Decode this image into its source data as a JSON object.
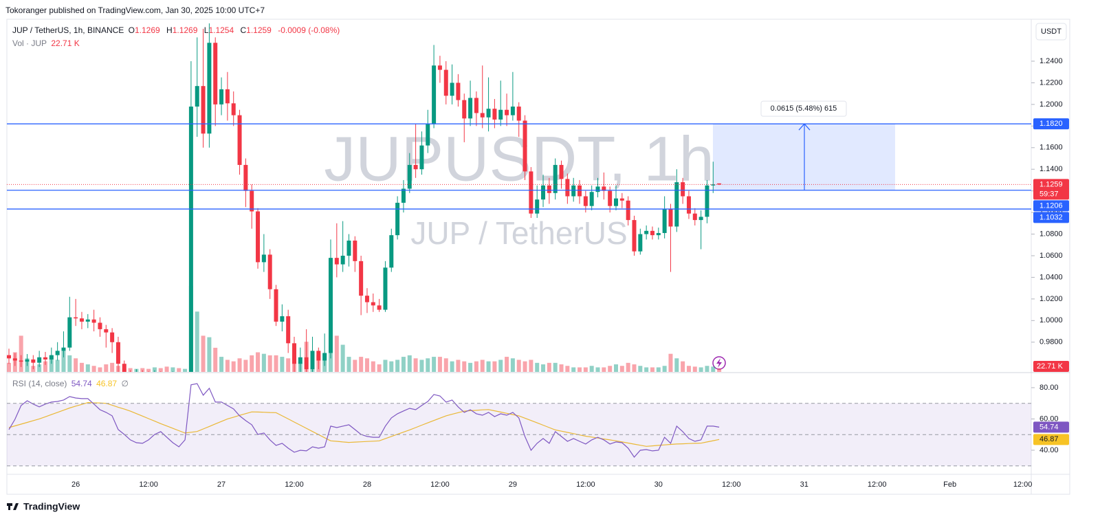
{
  "attribution": "Tokoranger published on TradingView.com, Jan 30, 2025 10:00 UTC+7",
  "footer": "TradingView",
  "chart_data": {
    "type": "candlestick",
    "symbol": "JUP / TetherUS, 1h, BINANCE",
    "ohlc_letters": [
      "O",
      "H",
      "L",
      "C"
    ],
    "change": "-0.0009 (-0.08%)",
    "currency": "USDT",
    "watermark": [
      "JUPUSDT, 1h",
      "JUP / TetherUS"
    ],
    "up_color": "#089981",
    "down_color": "#f23645",
    "level_color": "#2962ff",
    "ylim": [
      0.9525,
      1.2788
    ],
    "yticks": [
      {
        "value": 0.98,
        "label": "0.9800"
      },
      {
        "value": 1.0,
        "label": "1.0000"
      },
      {
        "value": 1.02,
        "label": "1.0200"
      },
      {
        "value": 1.04,
        "label": "1.0400"
      },
      {
        "value": 1.06,
        "label": "1.0600"
      },
      {
        "value": 1.08,
        "label": "1.0800"
      },
      {
        "value": 1.1,
        "label": "1.1000"
      },
      {
        "value": 1.12,
        "label": "1.1200"
      },
      {
        "value": 1.14,
        "label": "1.1400"
      },
      {
        "value": 1.16,
        "label": "1.1600"
      },
      {
        "value": 1.18,
        "label": "1.1800"
      },
      {
        "value": 1.2,
        "label": "1.2000"
      },
      {
        "value": 1.22,
        "label": "1.2200"
      },
      {
        "value": 1.24,
        "label": "1.2400"
      }
    ],
    "xticks": [
      "26",
      "12:00",
      "27",
      "12:00",
      "28",
      "12:00",
      "29",
      "12:00",
      "30",
      "12:00",
      "31",
      "12:00",
      "Feb",
      "12:00"
    ],
    "levels": [
      {
        "value": 1.182,
        "label": "1.1820"
      },
      {
        "value": 1.1206,
        "label": "1.1206"
      },
      {
        "value": 1.1032,
        "label": "1.1032"
      }
    ],
    "countdown": "59:37",
    "measure_label": "0.0615 (5.48%) 615",
    "candles": {
      "open": [
        0.968,
        0.965,
        0.963,
        0.962,
        0.964,
        0.961,
        0.966,
        0.964,
        0.968,
        0.972,
        0.975,
        1.003,
        1.002,
        0.999,
        1.001,
        0.998,
        0.992,
        0.989,
        0.98,
        0.96,
        0.95,
        0.948,
        0.951,
        0.949,
        0.947,
        0.95,
        0.948,
        0.946,
        0.949,
        0.947,
        0.948,
        1.198,
        1.217,
        1.173,
        1.257,
        1.2,
        1.214,
        1.201,
        1.19,
        1.144,
        1.12,
        1.101,
        1.054,
        1.061,
        1.029,
        0.999,
        1.004,
        0.979,
        0.96,
        0.966,
        0.955,
        0.972,
        0.963,
        0.97,
        1.058,
        1.052,
        1.06,
        1.074,
        1.055,
        1.023,
        1.017,
        1.014,
        1.01,
        1.049,
        1.079,
        1.109,
        1.122,
        1.144,
        1.14,
        1.162,
        1.182,
        1.236,
        1.232,
        1.208,
        1.22,
        1.204,
        1.187,
        1.206,
        1.192,
        1.188,
        1.196,
        1.186,
        1.195,
        1.19,
        1.198,
        1.185,
        1.138,
        1.099,
        1.112,
        1.125,
        1.118,
        1.144,
        1.131,
        1.115,
        1.125,
        1.115,
        1.106,
        1.119,
        1.124,
        1.12,
        1.106,
        1.113,
        1.111,
        1.093,
        1.064,
        1.08,
        1.083,
        1.079,
        1.081,
        1.103,
        1.087,
        1.128,
        1.115,
        1.099,
        1.093,
        1.096,
        1.125,
        1.1269
      ],
      "high": [
        0.974,
        0.97,
        0.968,
        0.969,
        0.968,
        0.972,
        0.971,
        0.975,
        0.98,
        0.99,
        1.022,
        1.02,
        1.008,
        1.006,
        1.01,
        1.003,
        0.996,
        0.993,
        0.985,
        0.963,
        0.954,
        0.955,
        0.954,
        0.953,
        0.954,
        0.953,
        0.951,
        0.953,
        0.952,
        0.952,
        1.24,
        1.262,
        1.27,
        1.275,
        1.262,
        1.225,
        1.23,
        1.212,
        1.195,
        1.15,
        1.126,
        1.104,
        1.08,
        1.066,
        1.033,
        1.015,
        1.01,
        0.985,
        0.975,
        0.992,
        0.985,
        0.975,
        0.988,
        1.075,
        1.09,
        1.092,
        1.08,
        1.078,
        1.06,
        1.03,
        1.025,
        1.02,
        1.055,
        1.085,
        1.115,
        1.13,
        1.155,
        1.182,
        1.175,
        1.195,
        1.255,
        1.245,
        1.24,
        1.237,
        1.228,
        1.21,
        1.222,
        1.212,
        1.236,
        1.225,
        1.205,
        1.222,
        1.21,
        1.23,
        1.202,
        1.19,
        1.142,
        1.125,
        1.135,
        1.132,
        1.15,
        1.148,
        1.136,
        1.132,
        1.13,
        1.12,
        1.125,
        1.132,
        1.137,
        1.124,
        1.125,
        1.118,
        1.115,
        1.097,
        1.085,
        1.088,
        1.087,
        1.086,
        1.115,
        1.108,
        1.14,
        1.132,
        1.12,
        1.104,
        1.102,
        1.13,
        1.147,
        1.1269
      ],
      "low": [
        0.96,
        0.958,
        0.957,
        0.958,
        0.955,
        0.957,
        0.959,
        0.96,
        0.963,
        0.966,
        0.972,
        0.995,
        0.992,
        0.993,
        0.99,
        0.985,
        0.975,
        0.97,
        0.952,
        0.944,
        0.943,
        0.944,
        0.944,
        0.942,
        0.943,
        0.943,
        0.941,
        0.942,
        0.942,
        0.943,
        0.945,
        1.17,
        1.16,
        1.16,
        1.18,
        1.19,
        1.185,
        1.18,
        1.135,
        1.105,
        1.085,
        1.048,
        1.045,
        1.02,
        0.995,
        0.99,
        0.97,
        0.95,
        0.952,
        0.948,
        0.95,
        0.955,
        0.958,
        0.965,
        1.04,
        1.045,
        1.05,
        1.045,
        1.005,
        1.007,
        1.008,
        1.008,
        1.008,
        1.045,
        1.075,
        1.1,
        1.118,
        1.132,
        1.135,
        1.155,
        1.178,
        1.22,
        1.2,
        1.2,
        1.198,
        1.165,
        1.18,
        1.18,
        1.178,
        1.175,
        1.178,
        1.18,
        1.18,
        1.185,
        1.17,
        1.13,
        1.095,
        1.095,
        1.105,
        1.108,
        1.112,
        1.122,
        1.108,
        1.11,
        1.108,
        1.1,
        1.102,
        1.114,
        1.112,
        1.1,
        1.102,
        1.104,
        1.088,
        1.06,
        1.061,
        1.075,
        1.075,
        1.075,
        1.076,
        1.045,
        1.082,
        1.108,
        1.094,
        1.088,
        1.066,
        1.09,
        1.118,
        1.1254
      ],
      "close": [
        0.965,
        0.963,
        0.962,
        0.964,
        0.961,
        0.966,
        0.964,
        0.968,
        0.972,
        0.975,
        1.003,
        1.002,
        0.999,
        1.001,
        0.998,
        0.992,
        0.989,
        0.98,
        0.96,
        0.95,
        0.948,
        0.951,
        0.949,
        0.947,
        0.95,
        0.948,
        0.946,
        0.949,
        0.947,
        0.948,
        1.198,
        1.217,
        1.173,
        1.257,
        1.2,
        1.214,
        1.201,
        1.19,
        1.144,
        1.12,
        1.101,
        1.054,
        1.061,
        1.029,
        0.999,
        1.004,
        0.979,
        0.96,
        0.966,
        0.955,
        0.972,
        0.963,
        0.97,
        1.058,
        1.052,
        1.06,
        1.074,
        1.055,
        1.023,
        1.017,
        1.014,
        1.01,
        1.049,
        1.079,
        1.109,
        1.122,
        1.144,
        1.14,
        1.162,
        1.182,
        1.236,
        1.232,
        1.208,
        1.22,
        1.204,
        1.187,
        1.206,
        1.192,
        1.188,
        1.196,
        1.186,
        1.195,
        1.19,
        1.198,
        1.185,
        1.138,
        1.099,
        1.112,
        1.125,
        1.118,
        1.144,
        1.131,
        1.115,
        1.125,
        1.115,
        1.106,
        1.119,
        1.124,
        1.12,
        1.106,
        1.113,
        1.111,
        1.093,
        1.064,
        1.08,
        1.083,
        1.079,
        1.081,
        1.103,
        1.087,
        1.128,
        1.115,
        1.099,
        1.093,
        1.096,
        1.125,
        1.126,
        1.1259
      ]
    },
    "volume": {
      "name": "Vol · JUP",
      "last_label": "22.71 K",
      "values": [
        60,
        130,
        240,
        90,
        40,
        50,
        70,
        110,
        80,
        140,
        110,
        90,
        60,
        50,
        40,
        30,
        50,
        60,
        40,
        20,
        25,
        20,
        25,
        20,
        30,
        25,
        35,
        30,
        25,
        20,
        570,
        400,
        240,
        230,
        160,
        100,
        80,
        70,
        90,
        80,
        110,
        130,
        120,
        110,
        110,
        100,
        90,
        70,
        60,
        200,
        110,
        110,
        120,
        180,
        240,
        180,
        100,
        80,
        100,
        90,
        70,
        50,
        80,
        70,
        80,
        100,
        110,
        90,
        80,
        90,
        100,
        100,
        90,
        70,
        80,
        70,
        60,
        70,
        80,
        70,
        70,
        80,
        100,
        90,
        80,
        70,
        80,
        60,
        50,
        60,
        60,
        50,
        40,
        30,
        30,
        30,
        40,
        30,
        30,
        40,
        50,
        40,
        60,
        50,
        40,
        30,
        30,
        30,
        40,
        120,
        90,
        70,
        40,
        35,
        30,
        40,
        35,
        22.71
      ]
    },
    "rsi": {
      "name": "RSI (14, close)",
      "color": "#7e57c2",
      "null_label": "∅",
      "ylim": [
        24.6,
        89.2
      ],
      "yticks": [
        {
          "value": 80,
          "label": "80.00"
        },
        {
          "value": 60,
          "label": "60.00"
        },
        {
          "value": 40,
          "label": "40.00"
        }
      ],
      "bands": [
        70,
        50,
        30
      ],
      "values": [
        53.2,
        59.8,
        68.6,
        71.6,
        69.5,
        67.7,
        69.5,
        70.8,
        71.2,
        72.1,
        74.3,
        73.4,
        73.0,
        73.0,
        69.5,
        65.9,
        64.2,
        62.0,
        53.2,
        50.1,
        46.6,
        44.8,
        44.4,
        46.6,
        50.1,
        51.9,
        48.3,
        44.8,
        42.2,
        46.6,
        81.8,
        82.6,
        75.2,
        79.6,
        70.8,
        70.8,
        68.6,
        66.4,
        62.0,
        58.9,
        56.3,
        50.1,
        51.0,
        46.6,
        43.1,
        44.4,
        41.3,
        38.7,
        40.0,
        39.6,
        42.2,
        41.3,
        42.2,
        55.4,
        54.5,
        55.4,
        56.3,
        53.2,
        50.1,
        48.8,
        48.3,
        48.3,
        55.4,
        60.7,
        63.3,
        65.1,
        66.8,
        65.9,
        68.6,
        71.2,
        75.6,
        74.7,
        70.8,
        72.1,
        67.7,
        64.2,
        65.9,
        63.3,
        62.4,
        64.2,
        61.5,
        63.3,
        62.4,
        64.2,
        60.7,
        48.8,
        40.0,
        44.4,
        47.5,
        44.4,
        51.9,
        48.8,
        45.7,
        47.5,
        45.7,
        44.0,
        46.6,
        48.3,
        46.6,
        44.0,
        45.3,
        44.8,
        41.3,
        35.6,
        40.0,
        40.4,
        39.6,
        40.0,
        48.3,
        44.4,
        55.4,
        51.9,
        47.5,
        45.7,
        46.6,
        55.4,
        55.4,
        54.74
      ],
      "ma": {
        "color": "#f7c325",
        "values": [
          54.5,
          55.6,
          56.7,
          57.8,
          58.9,
          60,
          61.4,
          62.8,
          64.2,
          65.6,
          67,
          68.2,
          69.3,
          70.5,
          70.3,
          70.2,
          70,
          68.8,
          67.5,
          66.3,
          65,
          63.4,
          61.8,
          60.2,
          58.6,
          57,
          55.5,
          54,
          52.5,
          51,
          51.5,
          52,
          53.6,
          55.2,
          56.8,
          58.4,
          60,
          61.1,
          62.3,
          63.4,
          64.5,
          64.4,
          64.3,
          64.1,
          64,
          62,
          60,
          58,
          56,
          54,
          52,
          50,
          48,
          46,
          45.7,
          45.3,
          45,
          45.2,
          45.4,
          45.6,
          45.8,
          46,
          47.4,
          48.8,
          50.2,
          51.6,
          53,
          54.5,
          56,
          57.5,
          59,
          60.5,
          62,
          63,
          64,
          65,
          65.3,
          65.5,
          65.8,
          66,
          65.2,
          64.4,
          63.6,
          62.8,
          62,
          60.5,
          59,
          57.5,
          56,
          54.5,
          53,
          52.2,
          51.4,
          50.6,
          49.8,
          49,
          48.4,
          47.8,
          47.2,
          46.6,
          46,
          45.3,
          44.6,
          43.9,
          43.2,
          42.5,
          42.8,
          43.1,
          43.4,
          43.7,
          44,
          44.1,
          44.3,
          44.4,
          44.5,
          45.3,
          46.1,
          46.87
        ]
      }
    }
  }
}
